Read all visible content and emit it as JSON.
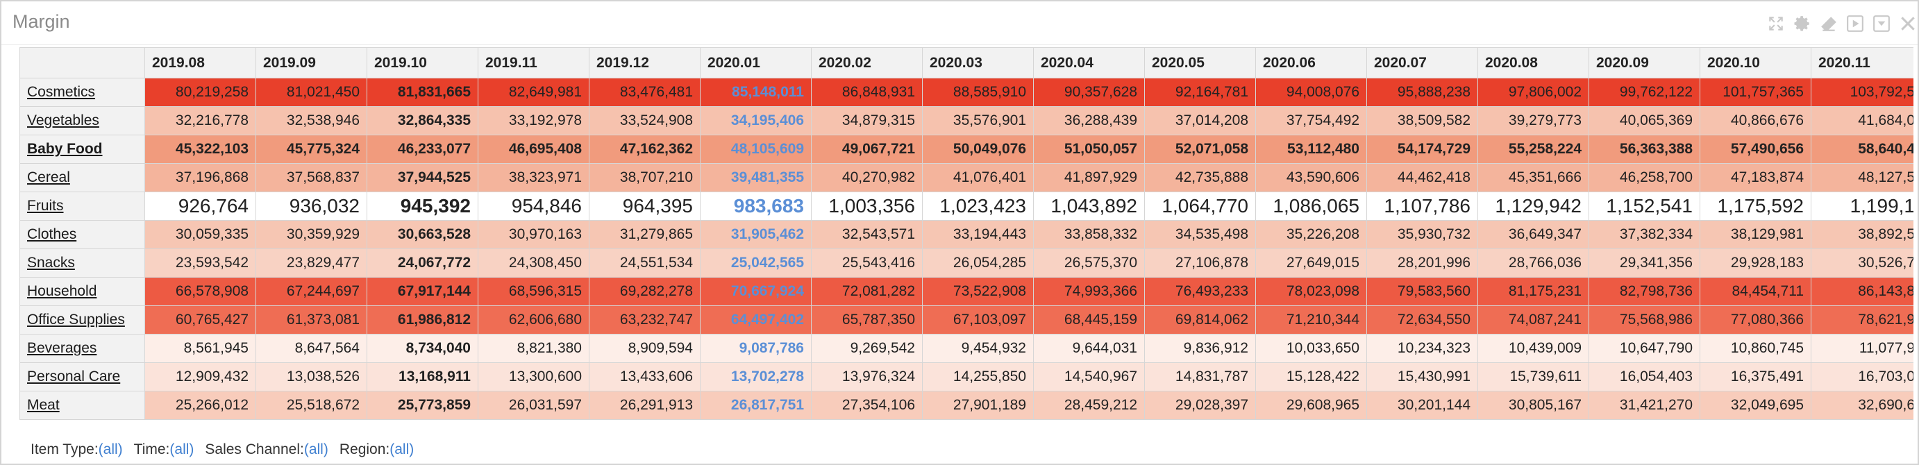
{
  "window": {
    "title": "Margin"
  },
  "toolbar_icons": [
    "expand-icon",
    "gear-icon",
    "eraser-icon",
    "play-icon",
    "minimize-icon",
    "close-icon"
  ],
  "columns": [
    "2019.08",
    "2019.09",
    "2019.10",
    "2019.11",
    "2019.12",
    "2020.01",
    "2020.02",
    "2020.03",
    "2020.04",
    "2020.05",
    "2020.06",
    "2020.07",
    "2020.08",
    "2020.09",
    "2020.10",
    "2020.11"
  ],
  "rows": [
    {
      "label": "Cosmetics",
      "bg": "#e8402b",
      "values": [
        "80,219,258",
        "81,021,450",
        "81,831,665",
        "82,649,981",
        "83,476,481",
        "85,148,011",
        "86,848,931",
        "88,585,910",
        "90,357,628",
        "92,164,781",
        "94,008,076",
        "95,888,238",
        "97,806,002",
        "99,762,122",
        "101,757,365",
        "103,792,5"
      ]
    },
    {
      "label": "Vegetables",
      "bg": "#f6c2ae",
      "values": [
        "32,216,778",
        "32,538,946",
        "32,864,335",
        "33,192,978",
        "33,524,908",
        "34,195,406",
        "34,879,315",
        "35,576,901",
        "36,288,439",
        "37,014,208",
        "37,754,492",
        "38,509,582",
        "39,279,773",
        "40,065,369",
        "40,866,676",
        "41,684,0"
      ]
    },
    {
      "label": "Baby Food",
      "bg": "#f19b7d",
      "bold": true,
      "values": [
        "45,322,103",
        "45,775,324",
        "46,233,077",
        "46,695,408",
        "47,162,362",
        "48,105,609",
        "49,067,721",
        "50,049,076",
        "51,050,057",
        "52,071,058",
        "53,112,480",
        "54,174,729",
        "55,258,224",
        "56,363,388",
        "57,490,656",
        "58,640,4"
      ]
    },
    {
      "label": "Cereal",
      "bg": "#f4b49c",
      "values": [
        "37,196,868",
        "37,568,837",
        "37,944,525",
        "38,323,971",
        "38,707,210",
        "39,481,355",
        "40,270,982",
        "41,076,401",
        "41,897,929",
        "42,735,888",
        "43,590,606",
        "44,462,418",
        "45,351,666",
        "46,258,700",
        "47,183,874",
        "48,127,5"
      ]
    },
    {
      "label": "Fruits",
      "bg": "#ffffff",
      "big": true,
      "values": [
        "926,764",
        "936,032",
        "945,392",
        "954,846",
        "964,395",
        "983,683",
        "1,003,356",
        "1,023,423",
        "1,043,892",
        "1,064,770",
        "1,086,065",
        "1,107,786",
        "1,129,942",
        "1,152,541",
        "1,175,592",
        "1,199,1"
      ]
    },
    {
      "label": "Clothes",
      "bg": "#f6c6b3",
      "values": [
        "30,059,335",
        "30,359,929",
        "30,663,528",
        "30,970,163",
        "31,279,865",
        "31,905,462",
        "32,543,571",
        "33,194,443",
        "33,858,332",
        "34,535,498",
        "35,226,208",
        "35,930,732",
        "36,649,347",
        "37,382,334",
        "38,129,981",
        "38,892,5"
      ]
    },
    {
      "label": "Snacks",
      "bg": "#f8d2c3",
      "values": [
        "23,593,542",
        "23,829,477",
        "24,067,772",
        "24,308,450",
        "24,551,534",
        "25,042,565",
        "25,543,416",
        "26,054,285",
        "26,575,370",
        "27,106,878",
        "27,649,015",
        "28,201,996",
        "28,766,036",
        "29,341,356",
        "29,928,183",
        "30,526,7"
      ]
    },
    {
      "label": "Household",
      "bg": "#ed5a43",
      "values": [
        "66,578,908",
        "67,244,697",
        "67,917,144",
        "68,596,315",
        "69,282,278",
        "70,667,924",
        "72,081,282",
        "73,522,908",
        "74,993,366",
        "76,493,233",
        "78,023,098",
        "79,583,560",
        "81,175,231",
        "82,798,736",
        "84,454,711",
        "86,143,8"
      ]
    },
    {
      "label": "Office Supplies",
      "bg": "#ef6d54",
      "values": [
        "60,765,427",
        "61,373,081",
        "61,986,812",
        "62,606,680",
        "63,232,747",
        "64,497,402",
        "65,787,350",
        "67,103,097",
        "68,445,159",
        "69,814,062",
        "71,210,344",
        "72,634,550",
        "74,087,241",
        "75,568,986",
        "77,080,366",
        "78,621,9"
      ]
    },
    {
      "label": "Beverages",
      "bg": "#fdeee8",
      "values": [
        "8,561,945",
        "8,647,564",
        "8,734,040",
        "8,821,380",
        "8,909,594",
        "9,087,786",
        "9,269,542",
        "9,454,932",
        "9,644,031",
        "9,836,912",
        "10,033,650",
        "10,234,323",
        "10,439,009",
        "10,647,790",
        "10,860,745",
        "11,077,9"
      ]
    },
    {
      "label": "Personal Care",
      "bg": "#fbe3da",
      "values": [
        "12,909,432",
        "13,038,526",
        "13,168,911",
        "13,300,600",
        "13,433,606",
        "13,702,278",
        "13,976,324",
        "14,255,850",
        "14,540,967",
        "14,831,787",
        "15,128,422",
        "15,430,991",
        "15,739,611",
        "16,054,403",
        "16,375,491",
        "16,703,0"
      ]
    },
    {
      "label": "Meat",
      "bg": "#f8ccbb",
      "values": [
        "25,266,012",
        "25,518,672",
        "25,773,859",
        "26,031,597",
        "26,291,913",
        "26,817,751",
        "27,354,106",
        "27,901,189",
        "28,459,212",
        "29,028,397",
        "29,608,965",
        "30,201,144",
        "30,805,167",
        "31,421,270",
        "32,049,695",
        "32,690,6"
      ]
    }
  ],
  "highlight": {
    "bold_column": 2,
    "blue_column": 5,
    "blue_color": "#5b8fd6"
  },
  "filters": [
    {
      "label": "Item Type:",
      "value": "(all)"
    },
    {
      "label": "Time:",
      "value": "(all)"
    },
    {
      "label": "Sales Channel:",
      "value": "(all)"
    },
    {
      "label": "Region:",
      "value": "(all)"
    }
  ]
}
